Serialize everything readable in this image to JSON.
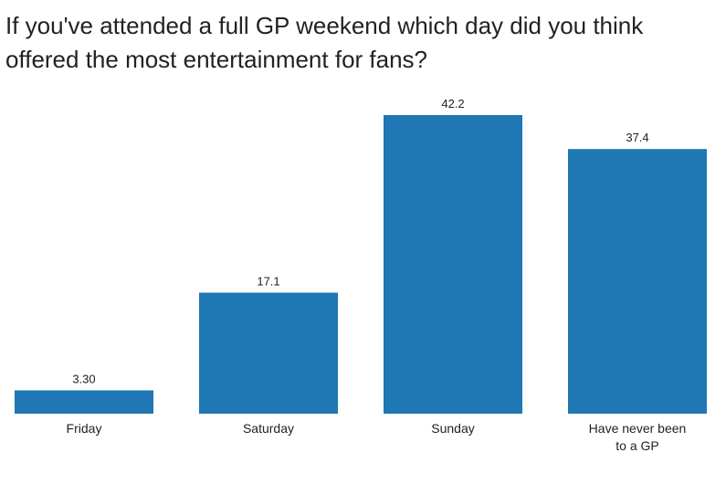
{
  "chart_data": {
    "type": "bar",
    "title": "If you've attended a full GP weekend which day did you think offered the most entertainment for fans?",
    "categories": [
      "Friday",
      "Saturday",
      "Sunday",
      "Have never been to a GP"
    ],
    "category_label_lines": [
      [
        "Friday"
      ],
      [
        "Saturday"
      ],
      [
        "Sunday"
      ],
      [
        "Have never been",
        "to a GP"
      ]
    ],
    "values": [
      3.3,
      17.1,
      42.2,
      37.4
    ],
    "value_labels": [
      "3.30",
      "17.1",
      "42.2",
      "37.4"
    ],
    "xlabel": "",
    "ylabel": "",
    "ylim": [
      0,
      42.2
    ],
    "grid": false,
    "legend": "none",
    "bar_color": "#1f77b4"
  }
}
